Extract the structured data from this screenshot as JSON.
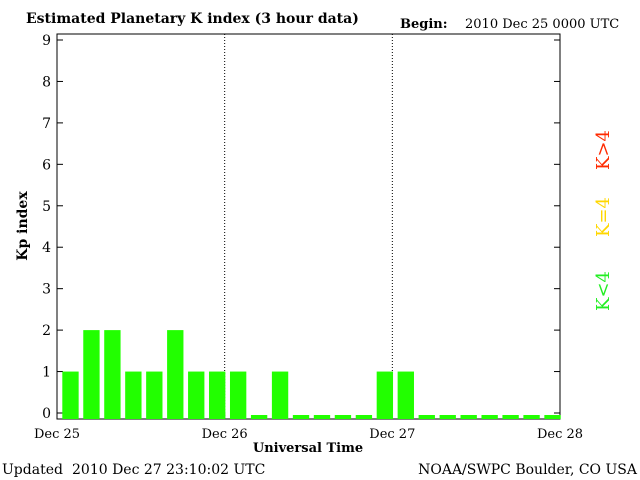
{
  "header": {
    "title": "Estimated Planetary K index (3 hour data)",
    "begin_label": "Begin:",
    "begin_value": "2010 Dec 25 0000 UTC"
  },
  "footer": {
    "updated_label": "Updated",
    "updated_value": "2010 Dec 27 23:10:02 UTC",
    "source": "NOAA/SWPC Boulder, CO USA"
  },
  "legend": {
    "high": {
      "text": "K>4",
      "color": "#ff2a00"
    },
    "mid": {
      "text": "K=4",
      "color": "#ffd700"
    },
    "low": {
      "text": "K<4",
      "color": "#22ee22"
    }
  },
  "chart_data": {
    "type": "bar",
    "title": "Estimated Planetary K index (3 hour data)",
    "xlabel": "Universal Time",
    "ylabel": "Kp index",
    "ylim": [
      0,
      9
    ],
    "yticks": [
      "0",
      "1",
      "2",
      "3",
      "4",
      "5",
      "6",
      "7",
      "8",
      "9"
    ],
    "xticks": [
      "Dec 25",
      "Dec 26",
      "Dec 27",
      "Dec 28"
    ],
    "day_dividers": [
      "Dec 26",
      "Dec 27"
    ],
    "bar_color": "#22ff00",
    "interval_hours": 3,
    "values": [
      1,
      2,
      2,
      1,
      1,
      2,
      1,
      1,
      1,
      0,
      1,
      0,
      0,
      0,
      0,
      1,
      1,
      0,
      0,
      0,
      0,
      0,
      0,
      0
    ]
  }
}
